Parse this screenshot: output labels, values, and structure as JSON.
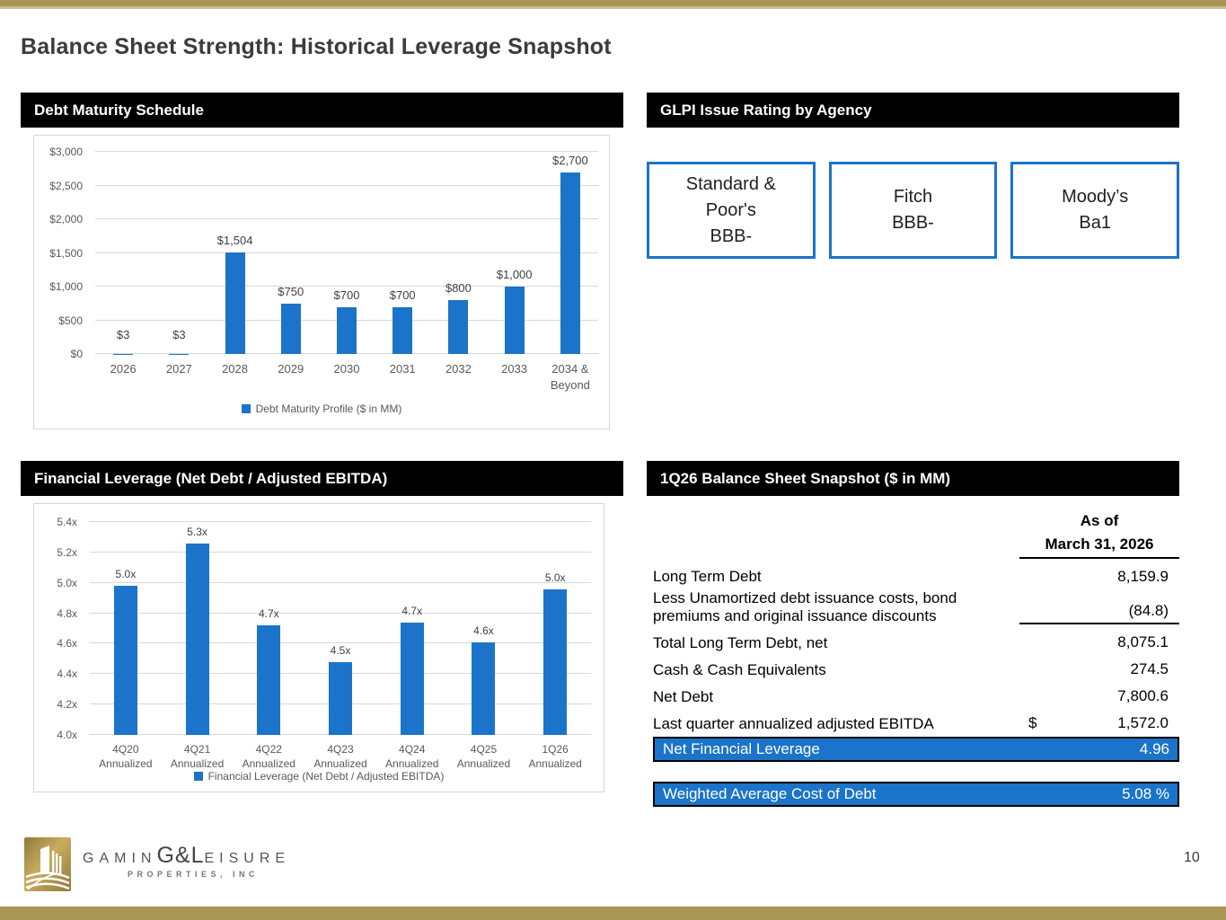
{
  "slide": {
    "title": "Balance Sheet Strength: Historical Leverage Snapshot",
    "page_number": "10"
  },
  "panels": {
    "debt_header": "Debt Maturity Schedule",
    "ratings_header": "GLPI Issue Rating by Agency",
    "leverage_header": "Financial Leverage (Net Debt / Adjusted EBITDA)",
    "balance_header": "1Q26 Balance Sheet Snapshot ($ in MM)"
  },
  "ratings": {
    "boxes": [
      {
        "agency": "Standard & Poor's",
        "rating": "BBB-"
      },
      {
        "agency": "Fitch",
        "rating": "BBB-"
      },
      {
        "agency": "Moody’s",
        "rating": "Ba1"
      }
    ]
  },
  "balance_sheet": {
    "col_header": "As of\nMarch 31, 2026",
    "rows": [
      {
        "label": "Long Term Debt",
        "prefix": "",
        "value": "8,159.9"
      },
      {
        "label": "Less Unamortized debt issuance costs, bond premiums and original issuance discounts",
        "prefix": "",
        "value": "(84.8)"
      },
      {
        "label": "Total Long Term Debt, net",
        "prefix": "",
        "value": "8,075.1"
      },
      {
        "label": "Cash & Cash Equivalents",
        "prefix": "",
        "value": "274.5"
      },
      {
        "label": "Net Debt",
        "prefix": "",
        "value": "7,800.6"
      },
      {
        "label": "Last quarter annualized adjusted EBITDA",
        "prefix": "$",
        "value": "1,572.0"
      }
    ],
    "highlights": [
      {
        "label": "Net Financial Leverage",
        "value": "4.96"
      },
      {
        "label": "Weighted Average Cost of Debt",
        "value": "5.08 %"
      }
    ]
  },
  "footer": {
    "brand_prefix": "GAMIN",
    "brand_mid": "G&L",
    "brand_suffix": "EISURE",
    "brand_sub": "PROPERTIES, INC"
  },
  "colors": {
    "accent_blue": "#1B74C9",
    "gold": "#A89655",
    "header_black": "#000000"
  },
  "chart_data": [
    {
      "type": "bar",
      "title": "Debt Maturity Schedule",
      "categories": [
        "2026",
        "2027",
        "2028",
        "2029",
        "2030",
        "2031",
        "2032",
        "2033",
        "2034 &\nBeyond"
      ],
      "values": [
        3,
        3,
        1504,
        750,
        700,
        700,
        800,
        1000,
        2700
      ],
      "data_labels": [
        "$3",
        "$3",
        "$1,504",
        "$750",
        "$700",
        "$700",
        "$800",
        "$1,000",
        "$2,700"
      ],
      "ylim": [
        0,
        3000
      ],
      "ticks": [
        {
          "value": 0,
          "label": "$0"
        },
        {
          "value": 500,
          "label": "$500"
        },
        {
          "value": 1000,
          "label": "$1,000"
        },
        {
          "value": 1500,
          "label": "$1,500"
        },
        {
          "value": 2000,
          "label": "$2,000"
        },
        {
          "value": 2500,
          "label": "$2,500"
        },
        {
          "value": 3000,
          "label": "$3,000"
        }
      ],
      "legend": "Debt Maturity Profile ($ in MM)",
      "bar_color": "#1B74C9",
      "grid": true,
      "legend_position": "bottom",
      "xlabel": "",
      "ylabel": "$ in MM"
    },
    {
      "type": "bar",
      "title": "Financial Leverage (Net Debt / Adjusted EBITDA)",
      "categories": [
        "4Q20\nAnnualized",
        "4Q21\nAnnualized",
        "4Q22\nAnnualized",
        "4Q23\nAnnualized",
        "4Q24\nAnnualized",
        "4Q25\nAnnualized",
        "1Q26\nAnnualized"
      ],
      "values": [
        4.98,
        5.26,
        4.72,
        4.48,
        4.74,
        4.61,
        4.96
      ],
      "data_labels": [
        "5.0x",
        "5.3x",
        "4.7x",
        "4.5x",
        "4.7x",
        "4.6x",
        "5.0x"
      ],
      "ylim": [
        4.0,
        5.4
      ],
      "ticks": [
        {
          "value": 4.0,
          "label": "4.0x"
        },
        {
          "value": 4.2,
          "label": "4.2x"
        },
        {
          "value": 4.4,
          "label": "4.4x"
        },
        {
          "value": 4.6,
          "label": "4.6x"
        },
        {
          "value": 4.8,
          "label": "4.8x"
        },
        {
          "value": 5.0,
          "label": "5.0x"
        },
        {
          "value": 5.2,
          "label": "5.2x"
        },
        {
          "value": 5.4,
          "label": "5.4x"
        }
      ],
      "legend": "Financial Leverage (Net Debt / Adjusted EBITDA)",
      "bar_color": "#1B74C9",
      "grid": true,
      "legend_position": "bottom",
      "xlabel": "",
      "ylabel": "Net Debt / Adjusted EBITDA"
    }
  ]
}
